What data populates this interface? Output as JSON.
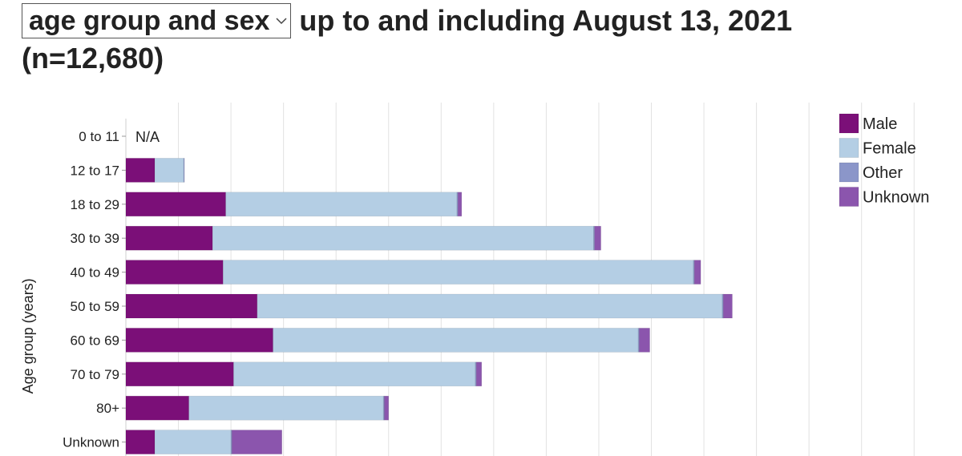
{
  "header": {
    "select_value": "age group and sex",
    "title_rest": "up to and including August 13, 2021",
    "title_line2": "(n=12,680)"
  },
  "chart_data": {
    "type": "bar",
    "orientation": "horizontal",
    "stacked": true,
    "ylabel": "Age group (years)",
    "xlabel": "",
    "categories": [
      "0 to 11",
      "12 to 17",
      "18 to 29",
      "30 to 39",
      "40 to 49",
      "50 to 59",
      "60 to 69",
      "70 to 79",
      "80+",
      "Unknown"
    ],
    "na_category": "0 to 11",
    "na_label": "N/A",
    "xlim": [
      0,
      1600
    ],
    "series": [
      {
        "name": "Male",
        "color": "#7b0f78",
        "values": [
          0,
          55,
          190,
          165,
          185,
          250,
          280,
          205,
          120,
          55
        ]
      },
      {
        "name": "Female",
        "color": "#b4cee4",
        "values": [
          0,
          55,
          440,
          725,
          895,
          885,
          695,
          460,
          370,
          145
        ]
      },
      {
        "name": "Other",
        "color": "#8b96c9",
        "values": [
          0,
          1,
          2,
          2,
          2,
          2,
          2,
          2,
          2,
          2
        ]
      },
      {
        "name": "Unknown",
        "color": "#8b55ad",
        "values": [
          0,
          0,
          7,
          12,
          12,
          17,
          20,
          10,
          8,
          95
        ]
      }
    ],
    "grid": true,
    "legend_position": "top-right"
  }
}
